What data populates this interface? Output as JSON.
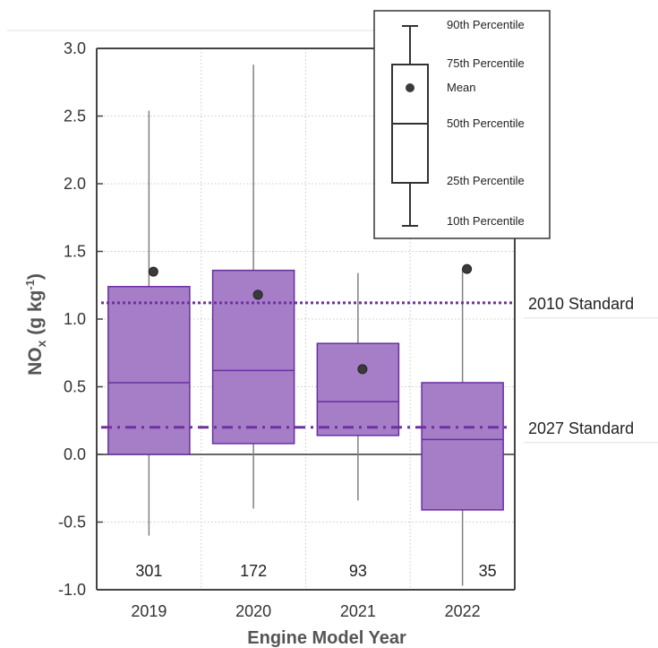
{
  "chart_data": {
    "type": "box",
    "xlabel": "Engine Model Year",
    "ylabel_main": "NO",
    "ylabel_sub": "x",
    "ylabel_unit_pre": " (g kg",
    "ylabel_unit_sup": "-1",
    "ylabel_unit_post": ")",
    "ylim": [
      -1.0,
      3.0
    ],
    "yticks": [
      -1.0,
      -0.5,
      0.0,
      0.5,
      1.0,
      1.5,
      2.0,
      2.5,
      3.0
    ],
    "ytick_labels": [
      "-1.0",
      "-0.5",
      "0.0",
      "0.5",
      "1.0",
      "1.5",
      "2.0",
      "2.5",
      "3.0"
    ],
    "grid": true,
    "categories": [
      "2019",
      "2020",
      "2021",
      "2022"
    ],
    "boxes": [
      {
        "p10": -0.6,
        "p25": 0.0,
        "p50": 0.53,
        "p75": 1.24,
        "p90": 2.54,
        "mean": 1.35,
        "n": "301"
      },
      {
        "p10": -0.4,
        "p25": 0.08,
        "p50": 0.62,
        "p75": 1.36,
        "p90": 2.88,
        "mean": 1.18,
        "n": "172"
      },
      {
        "p10": -0.34,
        "p25": 0.14,
        "p50": 0.39,
        "p75": 0.82,
        "p90": 1.34,
        "mean": 0.63,
        "n": "93"
      },
      {
        "p10": -0.97,
        "p25": -0.41,
        "p50": 0.11,
        "p75": 0.53,
        "p90": 1.37,
        "mean": 1.37,
        "n": "35"
      }
    ],
    "reference_lines": [
      {
        "label": "2010 Standard",
        "value": 1.12,
        "style": "dotted"
      },
      {
        "label": "2027 Standard",
        "value": 0.2,
        "style": "dash-dot"
      }
    ],
    "legend": {
      "position": "top-right",
      "items": [
        "90th Percentile",
        "75th Percentile",
        "Mean",
        "50th Percentile",
        "25th Percentile",
        "10th Percentile"
      ]
    },
    "colors": {
      "box_fill": "#a67ec8",
      "box_stroke": "#6a2ea0",
      "line": "#7030a0",
      "whisker": "#808080",
      "mean_dot": "#3a3a3a",
      "axis": "#444444"
    }
  }
}
